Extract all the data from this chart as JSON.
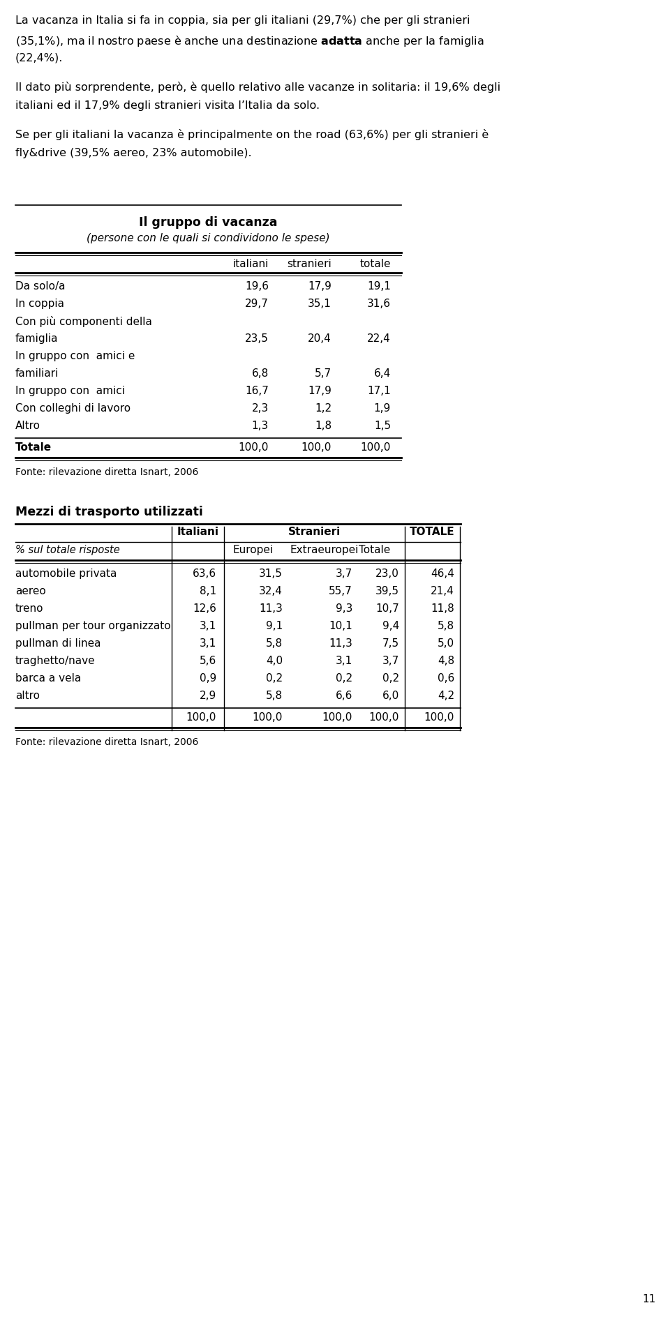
{
  "para1_lines": [
    "La vacanza in Italia si fa in coppia, sia per gli italiani (29,7%) che per gli stranieri",
    "(35,1%), ma il nostro paese è anche una destinazione adatta anche per la famiglia",
    "(22,4%)."
  ],
  "para2_lines": [
    "Il dato più sorprendente, però, è quello relativo alle vacanze in solitaria: il 19,6% degli",
    "italiani ed il 17,9% degli stranieri visita l’Italia da solo."
  ],
  "para3_lines": [
    "Se per gli italiani la vacanza è principalmente on the road (63,6%) per gli stranieri è",
    "fly&drive (39,5% aereo, 23% automobile)."
  ],
  "table1_title": "Il gruppo di vacanza",
  "table1_subtitle": "(persone con le quali si condividono le spese)",
  "table1_headers": [
    "",
    "italiani",
    "stranieri",
    "totale"
  ],
  "table1_rows": [
    [
      "Da solo/a",
      "19,6",
      "17,9",
      "19,1"
    ],
    [
      "In coppia",
      "29,7",
      "35,1",
      "31,6"
    ],
    [
      "Con più componenti della",
      "famiglia",
      "23,5",
      "20,4",
      "22,4"
    ],
    [
      "In gruppo con  amici e",
      "familiari",
      "6,8",
      "5,7",
      "6,4"
    ],
    [
      "In gruppo con  amici",
      "16,7",
      "17,9",
      "17,1"
    ],
    [
      "Con colleghi di lavoro",
      "2,3",
      "1,2",
      "1,9"
    ],
    [
      "Altro",
      "1,3",
      "1,8",
      "1,5"
    ]
  ],
  "table1_total": [
    "Totale",
    "100,0",
    "100,0",
    "100,0"
  ],
  "table1_source": "Fonte: rilevazione diretta Isnart, 2006",
  "table2_title": "Mezzi di trasporto utilizzati",
  "table2_rows": [
    [
      "automobile privata",
      "63,6",
      "31,5",
      "3,7",
      "23,0",
      "46,4"
    ],
    [
      "aereo",
      "8,1",
      "32,4",
      "55,7",
      "39,5",
      "21,4"
    ],
    [
      "treno",
      "12,6",
      "11,3",
      "9,3",
      "10,7",
      "11,8"
    ],
    [
      "pullman per tour organizzato",
      "3,1",
      "9,1",
      "10,1",
      "9,4",
      "5,8"
    ],
    [
      "pullman di linea",
      "3,1",
      "5,8",
      "11,3",
      "7,5",
      "5,0"
    ],
    [
      "traghetto/nave",
      "5,6",
      "4,0",
      "3,1",
      "3,7",
      "4,8"
    ],
    [
      "barca a vela",
      "0,9",
      "0,2",
      "0,2",
      "0,2",
      "0,6"
    ],
    [
      "altro",
      "2,9",
      "5,8",
      "6,6",
      "6,0",
      "4,2"
    ]
  ],
  "table2_total": [
    "100,0",
    "100,0",
    "100,0",
    "100,0",
    "100,0"
  ],
  "table2_source": "Fonte: rilevazione diretta Isnart, 2006",
  "page_number": "11",
  "bg": "#ffffff",
  "fg": "#000000"
}
